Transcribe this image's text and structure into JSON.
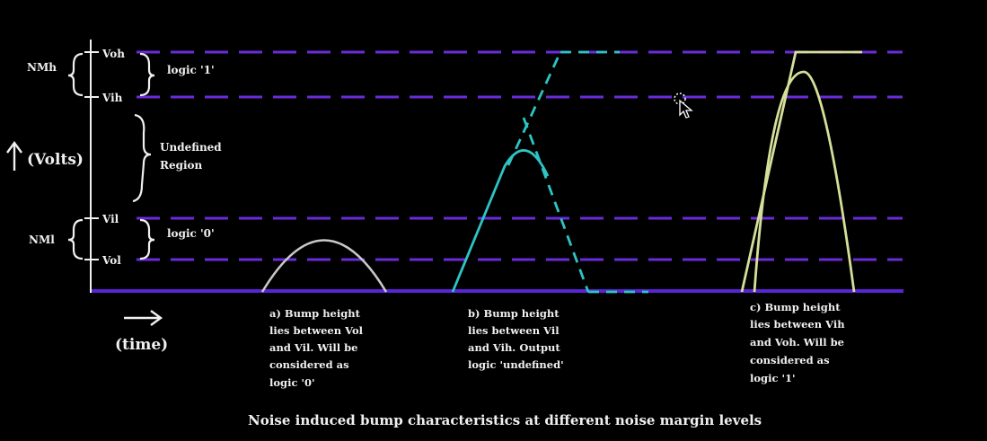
{
  "levels": {
    "voh": "Voh",
    "vih": "Vih",
    "vil": "Vil",
    "vol": "Vol"
  },
  "margins": {
    "high": "NMh",
    "low": "NMl"
  },
  "regions": {
    "logic1": "logic '1'",
    "undefined_line1": "Undefined",
    "undefined_line2": "Region",
    "logic0": "logic '0'"
  },
  "axes": {
    "y_label": "(Volts)",
    "x_label": "(time)"
  },
  "captions": {
    "a": [
      "a) Bump height",
      "lies between Vol",
      "and Vil. Will be",
      "considered as",
      "logic '0'"
    ],
    "b": [
      "b) Bump height",
      "lies between Vil",
      "and Vih. Output",
      "logic 'undefined'"
    ],
    "c": [
      "c) Bump height",
      "lies between Vih",
      "and Voh. Will be",
      "considered as",
      "logic '1'"
    ]
  },
  "title": "Noise induced bump characteristics at different noise margin levels",
  "colors": {
    "level_lines": "#6a2bd9",
    "axis": "#f0f0f0",
    "baseline": "#5a24d6",
    "bump_a": "#c8c8c8",
    "bump_b": "#2ec4c4",
    "bump_c": "#d6df9a"
  },
  "icons": [
    "mouse-cursor-icon",
    "up-arrow-icon",
    "right-arrow-icon"
  ]
}
